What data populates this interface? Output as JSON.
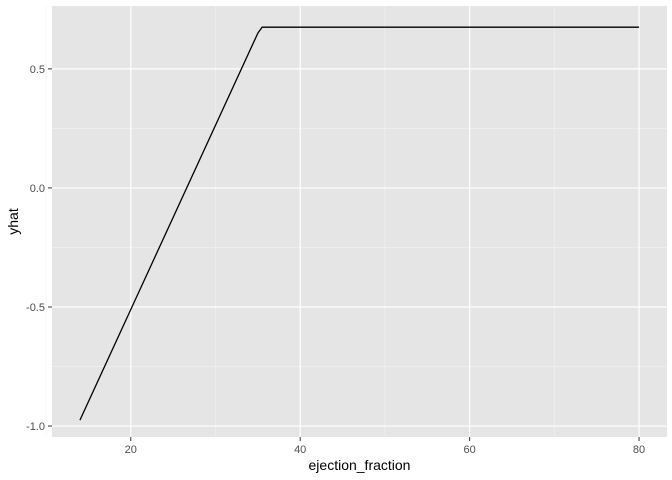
{
  "chart_data": {
    "type": "line",
    "title": "",
    "xlabel": "ejection_fraction",
    "ylabel": "yhat",
    "xlim": [
      10.7,
      83.3
    ],
    "ylim": [
      -1.046,
      0.764
    ],
    "x_ticks": [
      20,
      40,
      60,
      80
    ],
    "x_tick_labels": [
      "20",
      "40",
      "60",
      "80"
    ],
    "x_minor_ticks": [
      10,
      30,
      50,
      70
    ],
    "y_ticks": [
      -1.0,
      -0.5,
      0.0,
      0.5
    ],
    "y_tick_labels": [
      "-1.0",
      "-0.5",
      "0.0",
      "0.5"
    ],
    "y_minor_ticks": [
      -0.75,
      -0.25,
      0.25
    ],
    "grid": true,
    "legend": "none",
    "series": [
      {
        "x": [
          14,
          35,
          35.5,
          80
        ],
        "y": [
          -0.975,
          0.65,
          0.675,
          0.675
        ]
      }
    ]
  },
  "colors": {
    "panel_background": "#e5e5e5",
    "grid_major": "#ffffff",
    "grid_minor": "#f2f2f2",
    "line": "#000000",
    "tick_mark": "#333333",
    "tick_label": "#4d4d4d"
  }
}
